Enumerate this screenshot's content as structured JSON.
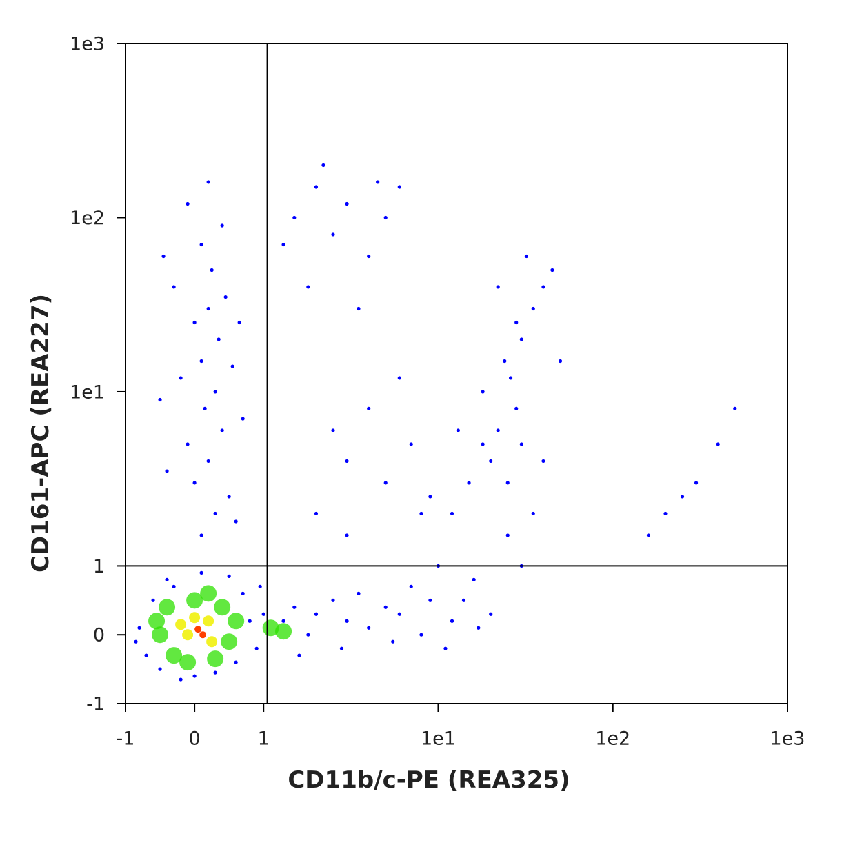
{
  "chart_data": {
    "type": "scatter",
    "x_label": "CD11b/c-PE (REA325)",
    "y_label": "CD161-APC (REA227)",
    "xscale": "symlog",
    "yscale": "symlog",
    "linthresh": 1,
    "xlim": [
      -1,
      1000
    ],
    "ylim": [
      -1,
      1000
    ],
    "xticks": [
      -1,
      0,
      1,
      {
        "value": 10,
        "label": "1e1"
      },
      {
        "value": 100,
        "label": "1e2"
      },
      {
        "value": 1000,
        "label": "1e3"
      }
    ],
    "yticks": [
      -1,
      0,
      1,
      {
        "value": 10,
        "label": "1e1"
      },
      {
        "value": 100,
        "label": "1e2"
      },
      {
        "value": 1000,
        "label": "1e3"
      }
    ],
    "quadrant": {
      "x": 1.05,
      "y": 1
    },
    "series": [
      {
        "color": "#0000ff",
        "x": [
          -0.8,
          -0.7,
          -0.6,
          -0.5,
          -0.4,
          0,
          0.3,
          0.6,
          0.8,
          0.7,
          0.5,
          0.1,
          -0.3,
          0.9,
          -0.85,
          1,
          0.95,
          -0.2,
          0.1,
          0.3,
          0,
          0.2,
          -0.1,
          0.4,
          0.15,
          0.3,
          -0.2,
          0.1,
          0.35,
          0,
          0.2,
          -0.3,
          0.25,
          0.1,
          0.4,
          -0.1,
          0.6,
          0.5,
          -0.4,
          0.7,
          -0.5,
          0.55,
          0.45,
          -0.45,
          0.2,
          0.65,
          1.5,
          2,
          2.5,
          3,
          4,
          5,
          1.8,
          3.5,
          6,
          2.2,
          1.3,
          4.5,
          1.3,
          1.5,
          1.8,
          2,
          2.5,
          3,
          3.5,
          4,
          5,
          6,
          7,
          8,
          9,
          2.8,
          5.5,
          1.6,
          2,
          3,
          5,
          4,
          7,
          6,
          8,
          3,
          2.5,
          10,
          12,
          15,
          18,
          20,
          22,
          25,
          28,
          30,
          35,
          14,
          16,
          12,
          20,
          25,
          30,
          40,
          18,
          24,
          30,
          35,
          40,
          45,
          28,
          50,
          32,
          22,
          17,
          11,
          9,
          13,
          26,
          250,
          300,
          400,
          500,
          200,
          160
        ],
        "values": [
          0.1,
          -0.3,
          0.5,
          -0.5,
          0.8,
          -0.6,
          -0.55,
          -0.4,
          0.2,
          0.6,
          0.85,
          0.9,
          0.7,
          -0.2,
          -0.1,
          0.3,
          0.7,
          -0.65,
          1.5,
          2,
          3,
          4,
          5,
          6,
          8,
          10,
          12,
          15,
          20,
          25,
          30,
          40,
          50,
          70,
          90,
          120,
          1.8,
          2.5,
          3.5,
          7,
          9,
          14,
          35,
          60,
          160,
          25,
          100,
          150,
          80,
          120,
          60,
          100,
          40,
          30,
          150,
          200,
          70,
          160,
          0.2,
          0.4,
          0,
          0.3,
          0.5,
          0.2,
          0.6,
          0.1,
          0.4,
          0.3,
          0.7,
          0,
          0.5,
          -0.2,
          -0.1,
          -0.3,
          2,
          4,
          3,
          8,
          5,
          12,
          2,
          1.5,
          6,
          1,
          2,
          3,
          5,
          4,
          6,
          3,
          8,
          5,
          2,
          0.5,
          0.8,
          0.2,
          0.3,
          1.5,
          1,
          4,
          10,
          15,
          20,
          30,
          40,
          50,
          25,
          15,
          60,
          40,
          0.1,
          -0.2,
          2.5,
          6,
          12,
          2.5,
          3,
          5,
          8,
          2,
          1.5
        ]
      },
      {
        "color": "#2ee000",
        "x": [
          -0.5,
          -0.4,
          -0.3,
          0,
          0.4,
          0.5,
          0.3,
          -0.1,
          0.6,
          -0.55,
          0.2,
          1.1,
          1.3
        ],
        "values": [
          0,
          0.4,
          -0.3,
          0.5,
          0.4,
          -0.1,
          -0.35,
          -0.4,
          0.2,
          0.2,
          0.6,
          0.1,
          0.05
        ]
      },
      {
        "color": "#f0f000",
        "x": [
          -0.1,
          0.2,
          0,
          0.25,
          -0.2
        ],
        "values": [
          0,
          0.2,
          0.25,
          -0.1,
          0.15
        ]
      },
      {
        "color": "#ff4000",
        "x": [
          0.05,
          0.12
        ],
        "values": [
          0.08,
          0
        ]
      }
    ]
  }
}
